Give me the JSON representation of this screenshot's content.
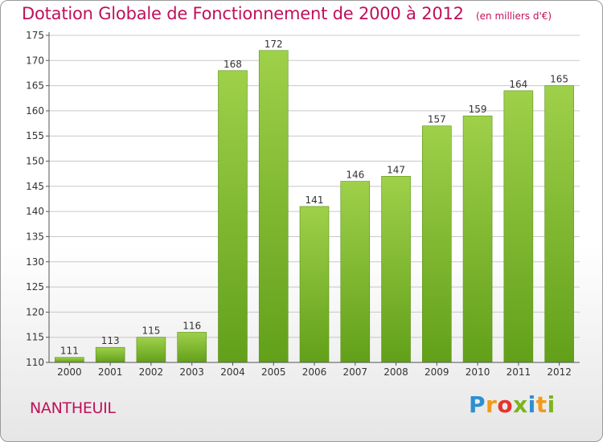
{
  "header": {
    "title": "Dotation Globale de Fonctionnement de 2000 à 2012",
    "subtitle": "(en milliers d'€)"
  },
  "footer": {
    "commune": "NANTHEUIL",
    "brand": "Proxiti",
    "brand_letters": [
      {
        "ch": "P",
        "color": "#2e8fd0"
      },
      {
        "ch": "r",
        "color": "#f29a18"
      },
      {
        "ch": "o",
        "color": "#e8322c"
      },
      {
        "ch": "x",
        "color": "#7ab51d"
      },
      {
        "ch": "i",
        "color": "#2e8fd0"
      },
      {
        "ch": "t",
        "color": "#f29a18"
      },
      {
        "ch": "i",
        "color": "#7ab51d"
      }
    ]
  },
  "colors": {
    "bar_light": "#9fd04a",
    "bar_dark": "#62a01a",
    "title": "#c0105a",
    "grid": "#c8c8c8"
  },
  "chart_data": {
    "type": "bar",
    "title": "Dotation Globale de Fonctionnement de 2000 à 2012",
    "subtitle": "(en milliers d'€)",
    "categories": [
      "2000",
      "2001",
      "2002",
      "2003",
      "2004",
      "2005",
      "2006",
      "2007",
      "2008",
      "2009",
      "2010",
      "2011",
      "2012"
    ],
    "values": [
      111,
      113,
      115,
      116,
      168,
      172,
      141,
      146,
      147,
      157,
      159,
      164,
      165
    ],
    "ylim": [
      110,
      175
    ],
    "yticks": [
      110,
      115,
      120,
      125,
      130,
      135,
      140,
      145,
      150,
      155,
      160,
      165,
      170,
      175
    ],
    "grid": true,
    "data_labels": true
  }
}
